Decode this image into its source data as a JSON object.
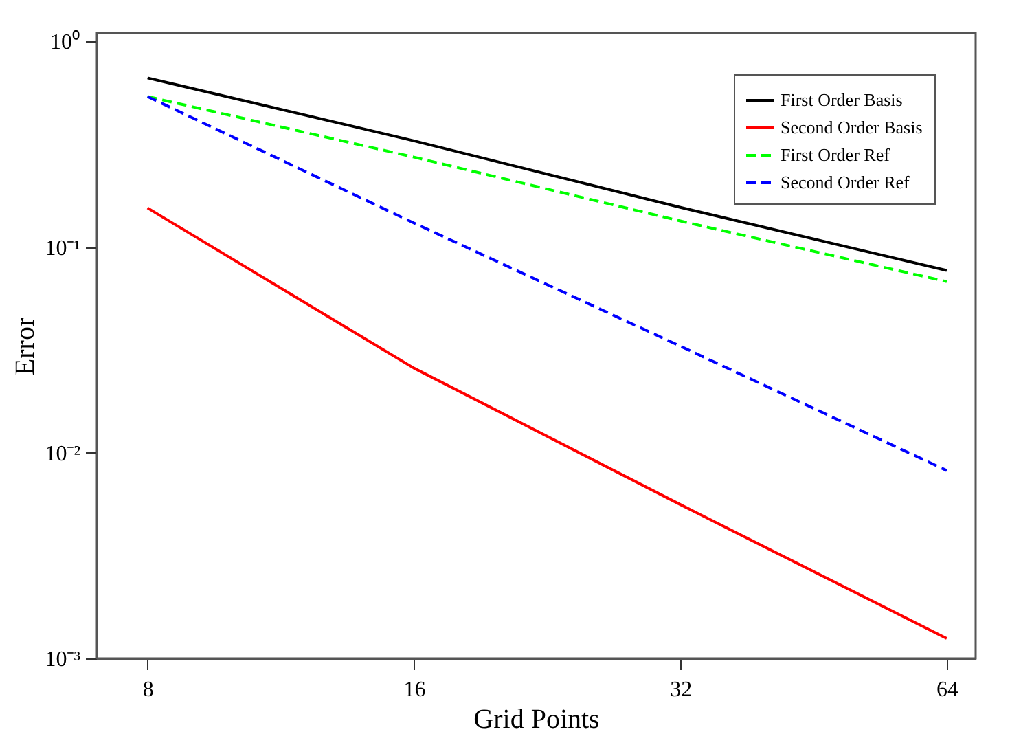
{
  "chart_data": {
    "type": "line",
    "xlabel": "Grid Points",
    "ylabel": "Error",
    "x": [
      8,
      16,
      32,
      64
    ],
    "series": [
      {
        "name": "First Order Basis",
        "color": "#000000",
        "line_style": "solid",
        "values": [
          0.665,
          0.329,
          0.156,
          0.077
        ]
      },
      {
        "name": "Second Order Basis",
        "color": "#ff0000",
        "line_style": "solid",
        "values": [
          0.155,
          0.0258,
          0.0056,
          0.00125
        ]
      },
      {
        "name": "First Order Ref",
        "color": "#00ff00",
        "line_style": "dashed",
        "values": [
          0.54,
          0.274,
          0.134,
          0.068
        ]
      },
      {
        "name": "Second Order Ref",
        "color": "#0000ff",
        "line_style": "dashed",
        "values": [
          0.54,
          0.131,
          0.033,
          0.0082
        ]
      }
    ],
    "log": "xy",
    "xlim": [
      7,
      69
    ],
    "ylim": [
      0.001,
      1.1
    ],
    "xticks": [
      8,
      16,
      32,
      64
    ],
    "yticks": [
      {
        "value": 1,
        "label": "10⁰"
      },
      {
        "value": 0.1,
        "label": "10⁻¹"
      },
      {
        "value": 0.01,
        "label": "10⁻²"
      },
      {
        "value": 0.001,
        "label": "10⁻³"
      }
    ],
    "grid": false,
    "legend": "top right",
    "marker": "none"
  }
}
